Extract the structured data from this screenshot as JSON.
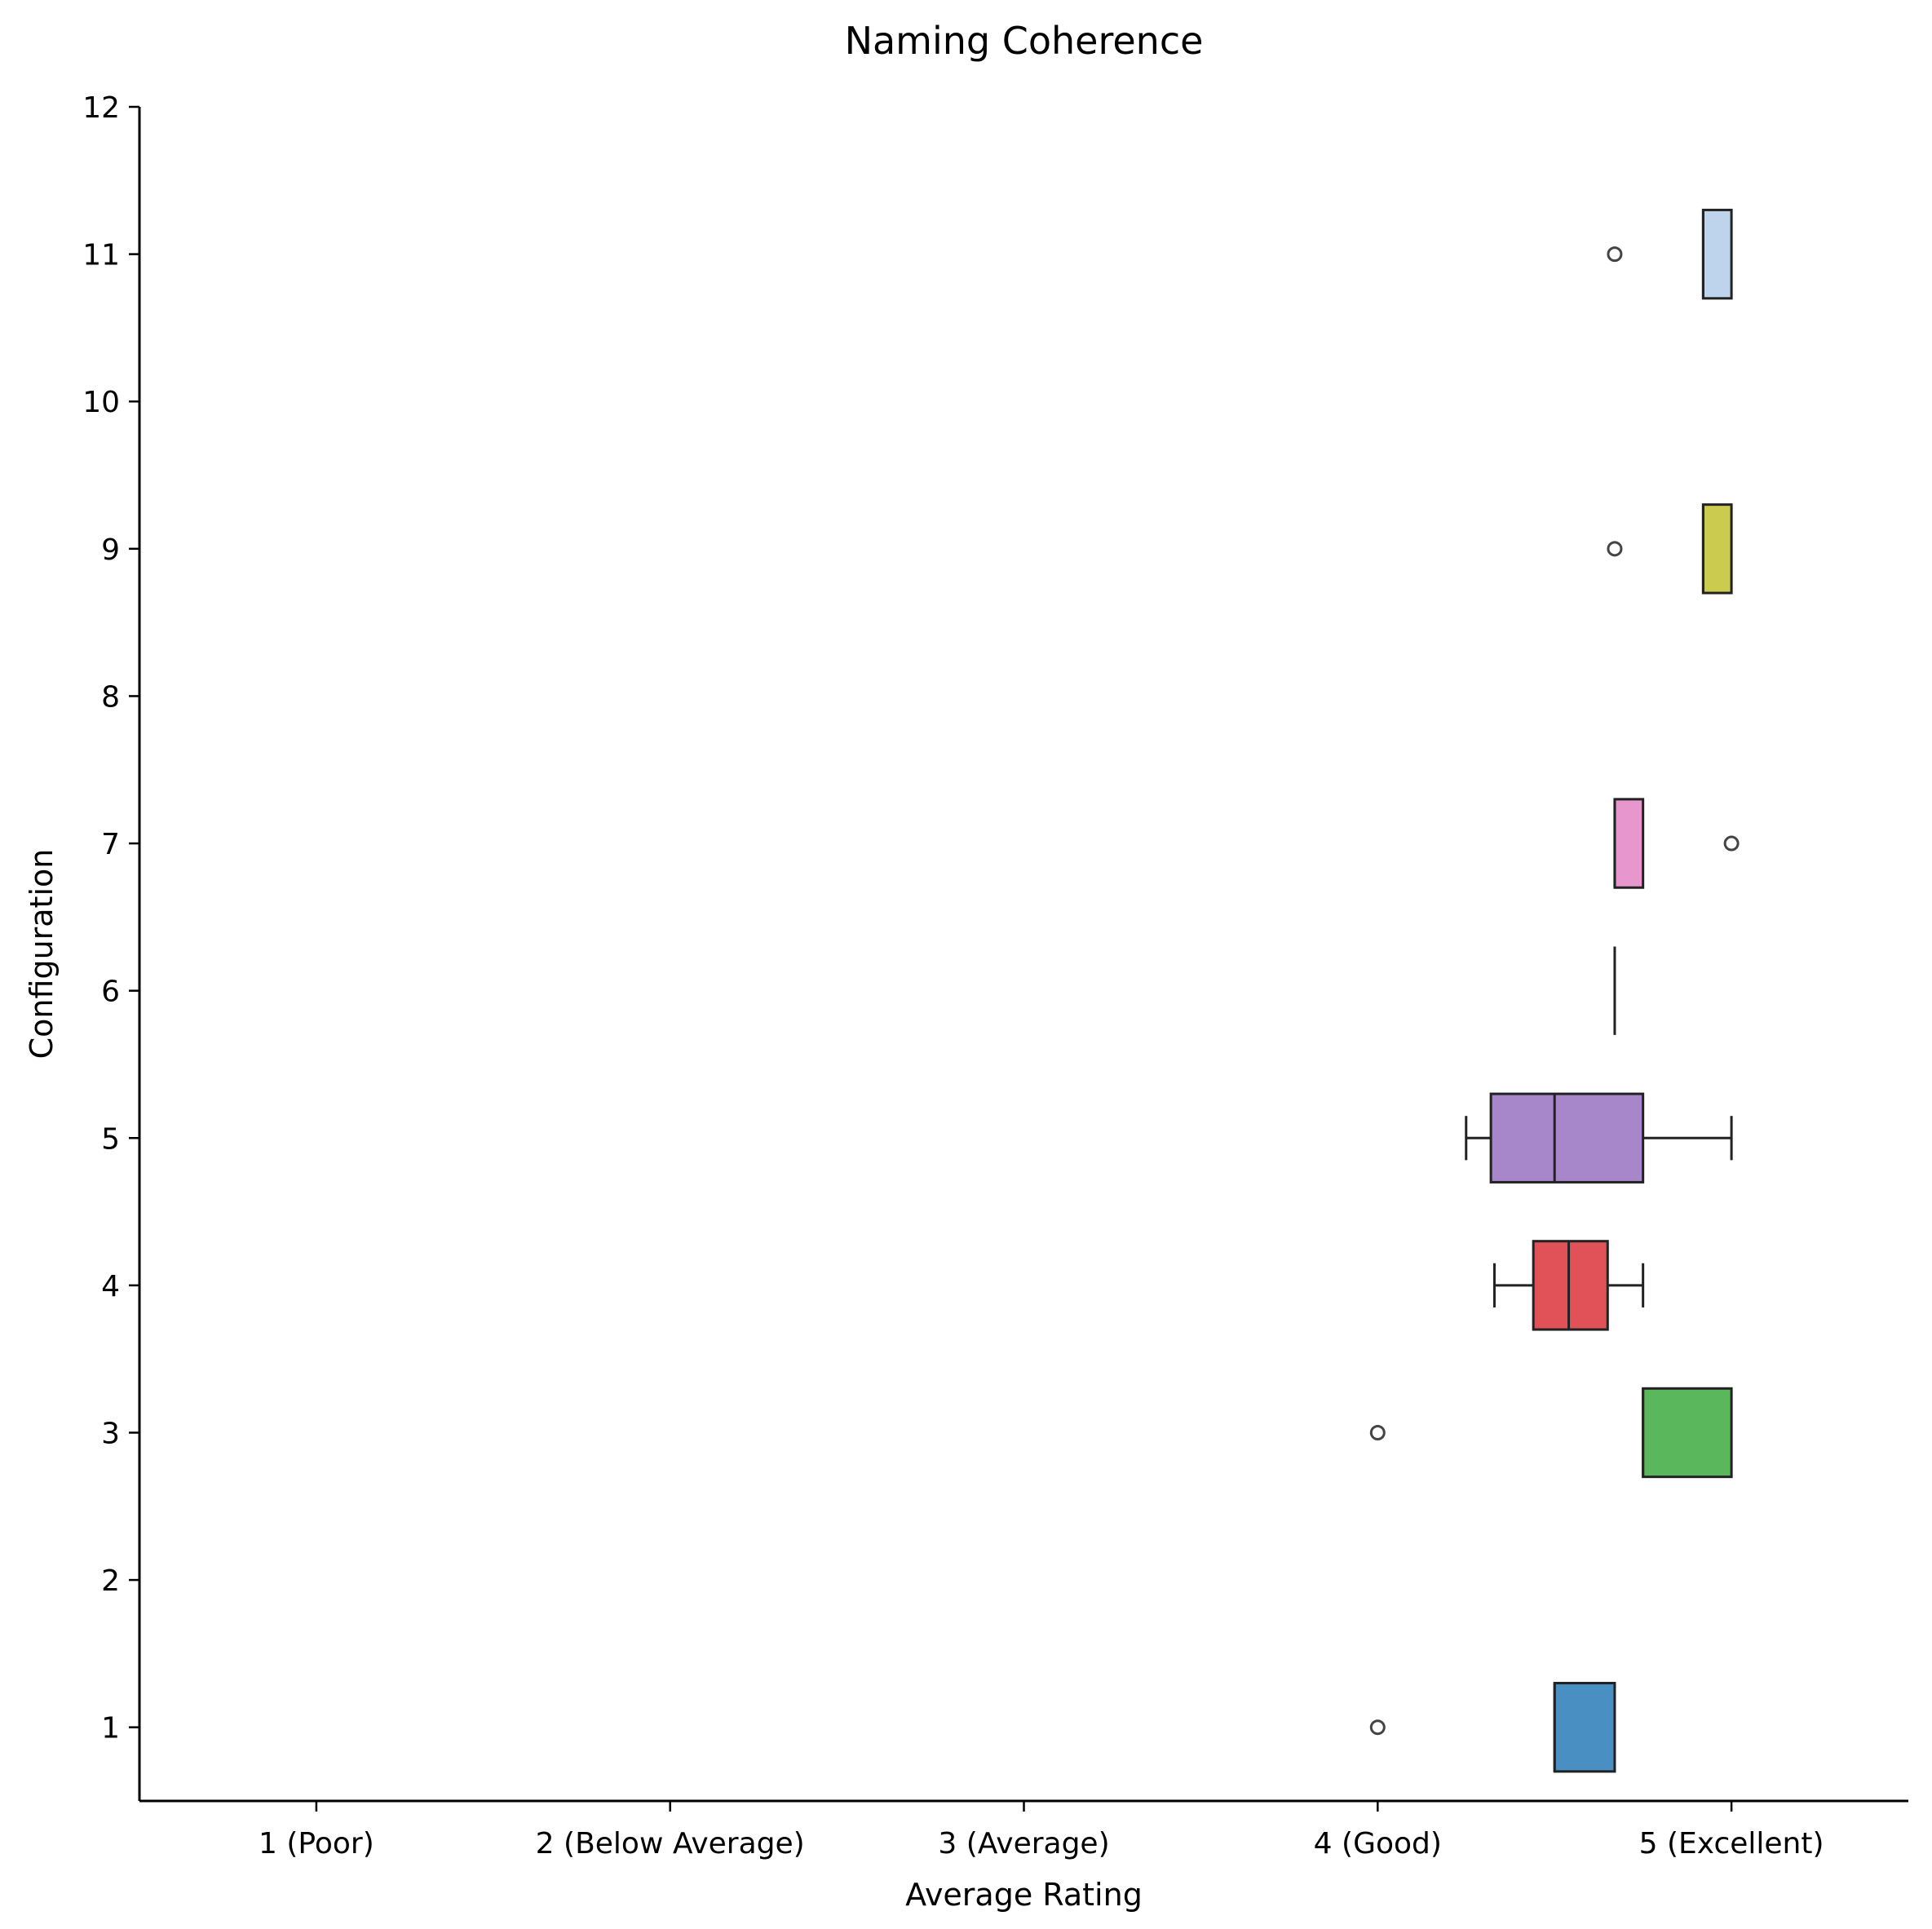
{
  "chart_data": {
    "type": "boxplot",
    "orientation": "horizontal",
    "title": "Naming Coherence",
    "xlabel": "Average Rating",
    "ylabel": "Configuration",
    "xlim": [
      0.5,
      5.5
    ],
    "ylim": [
      0.5,
      12
    ],
    "x_ticks": [
      {
        "value": 1,
        "label": "1 (Poor)"
      },
      {
        "value": 2,
        "label": "2 (Below Average)"
      },
      {
        "value": 3,
        "label": "3 (Average)"
      },
      {
        "value": 4,
        "label": "4 (Good)"
      },
      {
        "value": 5,
        "label": "5 (Excellent)"
      }
    ],
    "y_ticks": [
      {
        "value": 1,
        "label": "1"
      },
      {
        "value": 2,
        "label": "2"
      },
      {
        "value": 3,
        "label": "3"
      },
      {
        "value": 4,
        "label": "4"
      },
      {
        "value": 5,
        "label": "5"
      },
      {
        "value": 6,
        "label": "6"
      },
      {
        "value": 7,
        "label": "7"
      },
      {
        "value": 8,
        "label": "8"
      },
      {
        "value": 9,
        "label": "9"
      },
      {
        "value": 10,
        "label": "10"
      },
      {
        "value": 11,
        "label": "11"
      },
      {
        "value": 12,
        "label": "12"
      }
    ],
    "grid": false,
    "boxes": [
      {
        "config": 1,
        "whisker_low": 4.5,
        "q1": 4.5,
        "median": 4.5,
        "q3": 4.67,
        "whisker_high": 4.67,
        "outliers": [
          4.0
        ],
        "color": "#4a8fc2"
      },
      {
        "config": 3,
        "whisker_low": 4.75,
        "q1": 4.75,
        "median": 4.75,
        "q3": 5.0,
        "whisker_high": 5.0,
        "outliers": [
          4.0
        ],
        "color": "#5bb75b"
      },
      {
        "config": 4,
        "whisker_low": 4.33,
        "q1": 4.44,
        "median": 4.54,
        "q3": 4.65,
        "whisker_high": 4.75,
        "outliers": [],
        "color": "#e05257"
      },
      {
        "config": 5,
        "whisker_low": 4.25,
        "q1": 4.32,
        "median": 4.5,
        "q3": 4.75,
        "whisker_high": 5.0,
        "outliers": [],
        "color": "#a787c9"
      },
      {
        "config": 6,
        "whisker_low": 4.67,
        "q1": 4.67,
        "median": 4.67,
        "q3": 4.67,
        "whisker_high": 4.67,
        "outliers": [],
        "color": "#8c6d62"
      },
      {
        "config": 7,
        "whisker_low": 4.67,
        "q1": 4.67,
        "median": 4.67,
        "q3": 4.75,
        "whisker_high": 4.75,
        "outliers": [
          5.0
        ],
        "color": "#e797cd"
      },
      {
        "config": 9,
        "whisker_low": 4.92,
        "q1": 4.92,
        "median": 4.92,
        "q3": 5.0,
        "whisker_high": 5.0,
        "outliers": [
          4.67
        ],
        "color": "#cbcb4f"
      },
      {
        "config": 11,
        "whisker_low": 4.92,
        "q1": 4.92,
        "median": 4.92,
        "q3": 5.0,
        "whisker_high": 5.0,
        "outliers": [
          4.67
        ],
        "color": "#bed3ec"
      }
    ]
  }
}
